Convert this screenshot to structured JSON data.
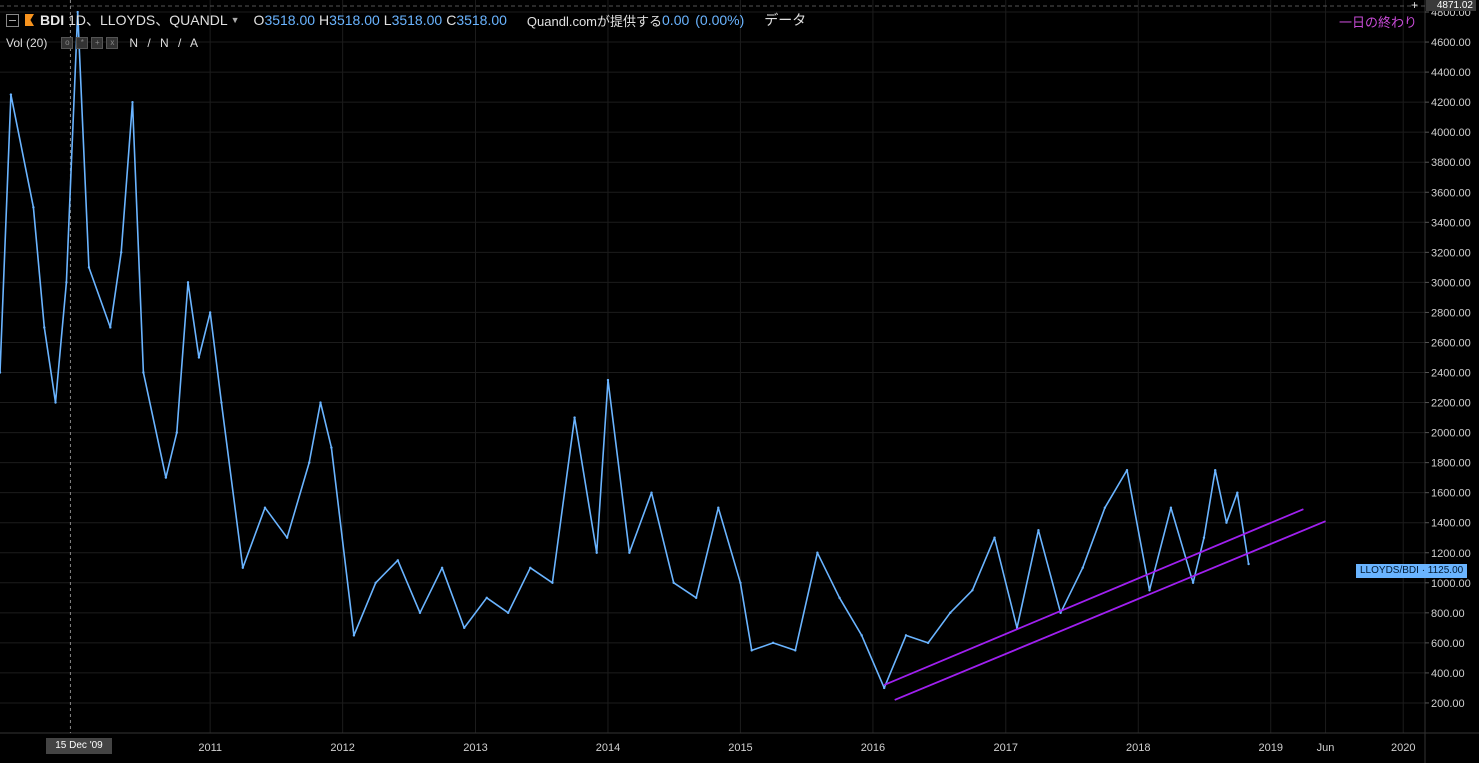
{
  "header": {
    "symbol": "BDI",
    "interval": "1D、LLOYDS、QUANDL",
    "open_label": "O",
    "open": "3518.00",
    "high_label": "H",
    "high": "3518.00",
    "low_label": "L",
    "low": "3518.00",
    "close_label": "C",
    "close": "3518.00",
    "source": "Quandl.comが提供する",
    "change": "0.00",
    "change_pct": "(0.00%)",
    "data_label": "データ"
  },
  "volume": {
    "label": "Vol (20)",
    "value": "N / N / A"
  },
  "end_of_day": "一日の終わり",
  "top_price": "4871.02",
  "crosshair_date": "15 Dec '09",
  "series_tag": "LLOYDS/BDI · 1125.00",
  "colors": {
    "line": "#6ab4ff",
    "trend": "#a020f0",
    "grid": "#1c1c1c",
    "text": "#d0d0d0",
    "background": "#000000"
  },
  "chart_data": {
    "type": "line",
    "y_ticks": [
      "200.00",
      "400.00",
      "600.00",
      "800.00",
      "1000.00",
      "1200.00",
      "1400.00",
      "1600.00",
      "1800.00",
      "2000.00",
      "2200.00",
      "2400.00",
      "2600.00",
      "2800.00",
      "3000.00",
      "3200.00",
      "3400.00",
      "3600.00",
      "3800.00",
      "4000.00",
      "4200.00",
      "4400.00",
      "4600.00",
      "4800.00"
    ],
    "x_ticks": [
      "2011",
      "2012",
      "2013",
      "2014",
      "2015",
      "2016",
      "2017",
      "2018",
      "2019",
      "Jun",
      "2020"
    ],
    "ylim": [
      0,
      4880
    ],
    "series": [
      {
        "x": [
          "2009-06",
          "2009-07",
          "2009-09",
          "2009-10",
          "2009-11",
          "2009-12",
          "2010-01",
          "2010-02",
          "2010-04",
          "2010-05",
          "2010-06",
          "2010-07",
          "2010-09",
          "2010-10",
          "2010-11",
          "2010-12",
          "2011-01",
          "2011-02",
          "2011-04",
          "2011-06",
          "2011-08",
          "2011-10",
          "2011-11",
          "2011-12",
          "2012-02",
          "2012-04",
          "2012-06",
          "2012-08",
          "2012-10",
          "2012-12",
          "2013-02",
          "2013-04",
          "2013-06",
          "2013-08",
          "2013-10",
          "2013-12",
          "2014-01",
          "2014-03",
          "2014-05",
          "2014-07",
          "2014-09",
          "2014-11",
          "2015-01",
          "2015-02",
          "2015-04",
          "2015-06",
          "2015-08",
          "2015-10",
          "2015-12",
          "2016-02",
          "2016-04",
          "2016-06",
          "2016-08",
          "2016-10",
          "2016-12",
          "2017-02",
          "2017-04",
          "2017-06",
          "2017-08",
          "2017-10",
          "2017-12",
          "2018-02",
          "2018-04",
          "2018-06",
          "2018-07",
          "2018-08",
          "2018-09",
          "2018-10",
          "2018-11"
        ],
        "y": [
          2400,
          4250,
          3500,
          2700,
          2200,
          3000,
          4800,
          3100,
          2700,
          3200,
          4200,
          2400,
          1700,
          2000,
          3000,
          2500,
          2800,
          2200,
          1100,
          1500,
          1300,
          1800,
          2200,
          1900,
          650,
          1000,
          1150,
          800,
          1100,
          700,
          900,
          800,
          1100,
          1000,
          2100,
          1200,
          2350,
          1200,
          1600,
          1000,
          900,
          1500,
          1000,
          550,
          600,
          550,
          1200,
          900,
          650,
          300,
          650,
          600,
          800,
          950,
          1300,
          700,
          1350,
          800,
          1100,
          1500,
          1750,
          950,
          1500,
          1000,
          1300,
          1750,
          1400,
          1600,
          1125
        ]
      }
    ],
    "trendlines": [
      {
        "from": [
          "2016-02",
          320
        ],
        "to": [
          "2019-04",
          1490
        ]
      },
      {
        "from": [
          "2016-03",
          220
        ],
        "to": [
          "2019-06",
          1410
        ]
      }
    ]
  }
}
